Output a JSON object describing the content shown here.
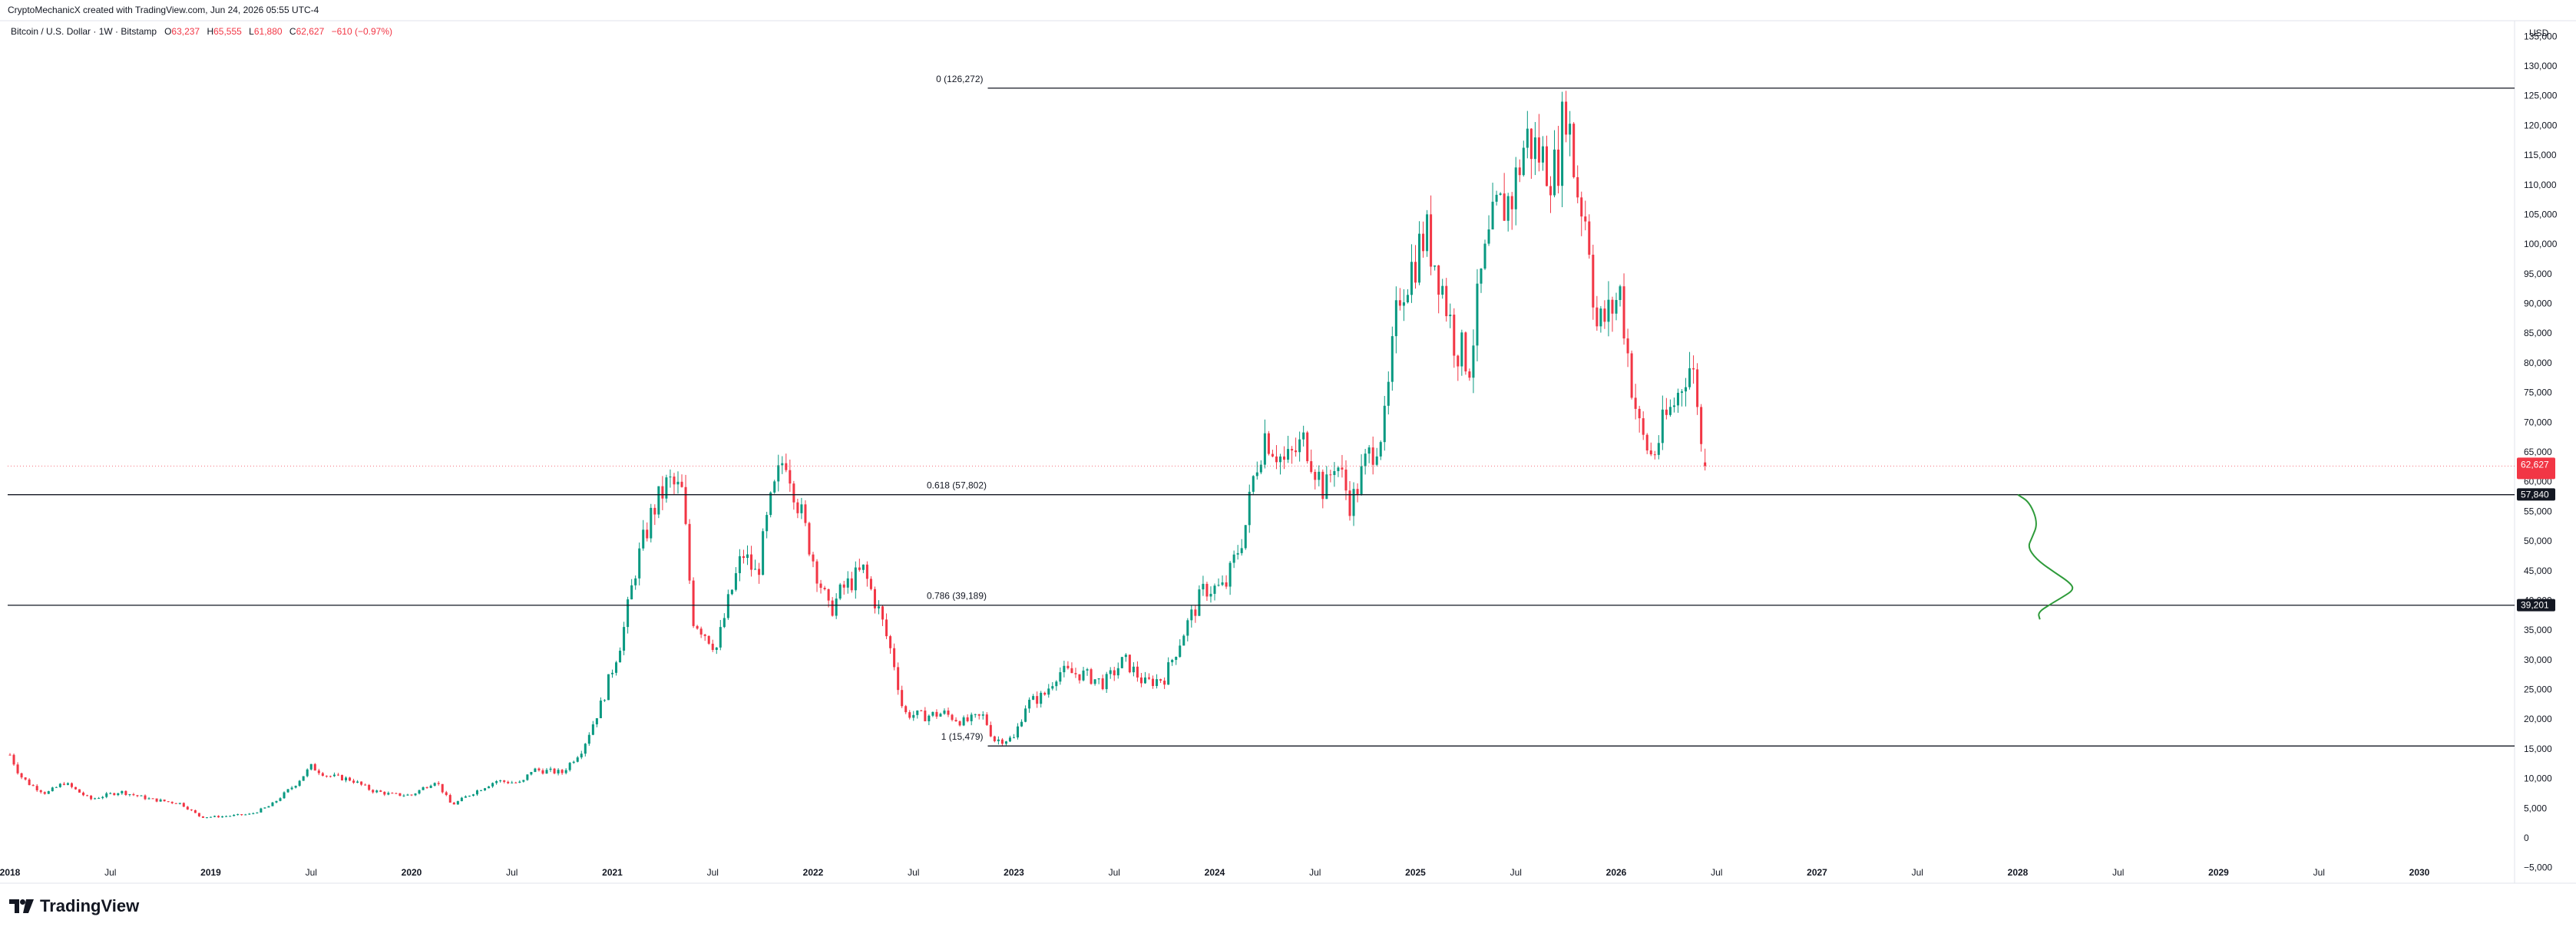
{
  "header": {
    "attribution": "CryptoMechanicX created with TradingView.com, Jun 24, 2026 05:55 UTC-4"
  },
  "legend": {
    "symbol": "Bitcoin / U.S. Dollar · 1W · Bitstamp",
    "open_key": "O",
    "open": "63,237",
    "high_key": "H",
    "high": "65,555",
    "low_key": "L",
    "low": "61,880",
    "close_key": "C",
    "close": "62,627",
    "change": "−610 (−0.97%)"
  },
  "axis": {
    "currency": "USD"
  },
  "colors": {
    "up": "#089981",
    "down": "#f23645",
    "fib_line": "#131722",
    "projection": "#2e9b3a",
    "price_tag": "#f23645",
    "level_tag": "#131722"
  },
  "chart_data": {
    "type": "candlestick",
    "symbol": "Bitcoin / U.S. Dollar",
    "interval": "1W",
    "exchange": "Bitstamp",
    "y_ticks": [
      135000,
      130000,
      125000,
      120000,
      115000,
      110000,
      105000,
      100000,
      95000,
      90000,
      85000,
      80000,
      75000,
      70000,
      65000,
      60000,
      55000,
      50000,
      45000,
      40000,
      35000,
      30000,
      25000,
      20000,
      15000,
      10000,
      5000,
      0,
      -5000
    ],
    "y_tick_labels": [
      "135,000",
      "130,000",
      "125,000",
      "120,000",
      "115,000",
      "110,000",
      "105,000",
      "100,000",
      "95,000",
      "90,000",
      "85,000",
      "80,000",
      "75,000",
      "70,000",
      "65,000",
      "60,000",
      "55,000",
      "50,000",
      "45,000",
      "40,000",
      "35,000",
      "30,000",
      "25,000",
      "20,000",
      "15,000",
      "10,000",
      "5,000",
      "0",
      "−5,000"
    ],
    "ylim": [
      -7500,
      137500
    ],
    "x_ticks": [
      {
        "label": "2018",
        "t": 2018.0,
        "bold": true
      },
      {
        "label": "Jul",
        "t": 2018.5,
        "bold": false
      },
      {
        "label": "2019",
        "t": 2019.0,
        "bold": true
      },
      {
        "label": "Jul",
        "t": 2019.5,
        "bold": false
      },
      {
        "label": "2020",
        "t": 2020.0,
        "bold": true
      },
      {
        "label": "Jul",
        "t": 2020.5,
        "bold": false
      },
      {
        "label": "2021",
        "t": 2021.0,
        "bold": true
      },
      {
        "label": "Jul",
        "t": 2021.5,
        "bold": false
      },
      {
        "label": "2022",
        "t": 2022.0,
        "bold": true
      },
      {
        "label": "Jul",
        "t": 2022.5,
        "bold": false
      },
      {
        "label": "2023",
        "t": 2023.0,
        "bold": true
      },
      {
        "label": "Jul",
        "t": 2023.5,
        "bold": false
      },
      {
        "label": "2024",
        "t": 2024.0,
        "bold": true
      },
      {
        "label": "Jul",
        "t": 2024.5,
        "bold": false
      },
      {
        "label": "2025",
        "t": 2025.0,
        "bold": true
      },
      {
        "label": "Jul",
        "t": 2025.5,
        "bold": false
      },
      {
        "label": "2026",
        "t": 2026.0,
        "bold": true
      },
      {
        "label": "Jul",
        "t": 2026.5,
        "bold": false
      },
      {
        "label": "2027",
        "t": 2027.0,
        "bold": true
      },
      {
        "label": "Jul",
        "t": 2027.5,
        "bold": false
      },
      {
        "label": "2028",
        "t": 2028.0,
        "bold": true
      },
      {
        "label": "Jul",
        "t": 2028.5,
        "bold": false
      },
      {
        "label": "2029",
        "t": 2029.0,
        "bold": true
      },
      {
        "label": "Jul",
        "t": 2029.5,
        "bold": false
      },
      {
        "label": "2030",
        "t": 2030.0,
        "bold": true
      }
    ],
    "fib_levels": [
      {
        "label": "0 (126,272)",
        "price": 126272,
        "t_start": 2022.87
      },
      {
        "label": "0.618 (57,802)",
        "price": 57802,
        "t_start": 2017.95
      },
      {
        "label": "0.786 (39,189)",
        "price": 39189,
        "t_start": 2017.95
      },
      {
        "label": "1 (15,479)",
        "price": 15479,
        "t_start": 2022.87
      }
    ],
    "price_tags": [
      {
        "label": "62,627",
        "price": 62627,
        "kind": "current"
      },
      {
        "label": "57,840",
        "price": 57840,
        "kind": "level"
      },
      {
        "label": "39,201",
        "price": 39201,
        "kind": "level"
      }
    ],
    "current_price": 62627,
    "last_candle": {
      "open": 63237,
      "high": 65555,
      "low": 61880,
      "close": 62627
    },
    "anchors": [
      [
        2018.0,
        14000
      ],
      [
        2018.05,
        10500
      ],
      [
        2018.1,
        9000
      ],
      [
        2018.18,
        7500
      ],
      [
        2018.27,
        9300
      ],
      [
        2018.4,
        6500
      ],
      [
        2018.55,
        7800
      ],
      [
        2018.7,
        6500
      ],
      [
        2018.85,
        5800
      ],
      [
        2018.95,
        3500
      ],
      [
        2019.05,
        3600
      ],
      [
        2019.2,
        4000
      ],
      [
        2019.3,
        5500
      ],
      [
        2019.42,
        9000
      ],
      [
        2019.5,
        12000
      ],
      [
        2019.58,
        10500
      ],
      [
        2019.7,
        9800
      ],
      [
        2019.8,
        8000
      ],
      [
        2019.9,
        7300
      ],
      [
        2020.0,
        7200
      ],
      [
        2020.12,
        9700
      ],
      [
        2020.2,
        5500
      ],
      [
        2020.3,
        7500
      ],
      [
        2020.42,
        9600
      ],
      [
        2020.55,
        9200
      ],
      [
        2020.6,
        11500
      ],
      [
        2020.75,
        11000
      ],
      [
        2020.85,
        15000
      ],
      [
        2020.95,
        23000
      ],
      [
        2021.05,
        34000
      ],
      [
        2021.12,
        46000
      ],
      [
        2021.2,
        55000
      ],
      [
        2021.28,
        60000
      ],
      [
        2021.35,
        58000
      ],
      [
        2021.4,
        37000
      ],
      [
        2021.45,
        35000
      ],
      [
        2021.52,
        32000
      ],
      [
        2021.58,
        40000
      ],
      [
        2021.65,
        48000
      ],
      [
        2021.72,
        44000
      ],
      [
        2021.78,
        55000
      ],
      [
        2021.86,
        65000
      ],
      [
        2021.92,
        57000
      ],
      [
        2022.0,
        47000
      ],
      [
        2022.08,
        38000
      ],
      [
        2022.15,
        42000
      ],
      [
        2022.25,
        45000
      ],
      [
        2022.33,
        38000
      ],
      [
        2022.4,
        30000
      ],
      [
        2022.45,
        21000
      ],
      [
        2022.55,
        20500
      ],
      [
        2022.65,
        21000
      ],
      [
        2022.75,
        19500
      ],
      [
        2022.85,
        20500
      ],
      [
        2022.9,
        16500
      ],
      [
        2023.0,
        16700
      ],
      [
        2023.06,
        22500
      ],
      [
        2023.15,
        24000
      ],
      [
        2023.22,
        28000
      ],
      [
        2023.35,
        27500
      ],
      [
        2023.45,
        26000
      ],
      [
        2023.55,
        30000
      ],
      [
        2023.65,
        26000
      ],
      [
        2023.75,
        27000
      ],
      [
        2023.85,
        35000
      ],
      [
        2023.95,
        42000
      ],
      [
        2024.05,
        42000
      ],
      [
        2024.15,
        52000
      ],
      [
        2024.2,
        62000
      ],
      [
        2024.25,
        68000
      ],
      [
        2024.35,
        63000
      ],
      [
        2024.45,
        67000
      ],
      [
        2024.55,
        58000
      ],
      [
        2024.6,
        64000
      ],
      [
        2024.68,
        56000
      ],
      [
        2024.75,
        63000
      ],
      [
        2024.85,
        70000
      ],
      [
        2024.88,
        80000
      ],
      [
        2024.92,
        92000
      ],
      [
        2024.98,
        96000
      ],
      [
        2025.05,
        102000
      ],
      [
        2025.12,
        95000
      ],
      [
        2025.2,
        83000
      ],
      [
        2025.27,
        80000
      ],
      [
        2025.33,
        95000
      ],
      [
        2025.4,
        105000
      ],
      [
        2025.48,
        108000
      ],
      [
        2025.55,
        118000
      ],
      [
        2025.62,
        115000
      ],
      [
        2025.7,
        112000
      ],
      [
        2025.75,
        124000
      ],
      [
        2025.8,
        110000
      ],
      [
        2025.86,
        103000
      ],
      [
        2025.9,
        86000
      ],
      [
        2025.96,
        88000
      ],
      [
        2026.02,
        92000
      ],
      [
        2026.07,
        78000
      ],
      [
        2026.12,
        68000
      ],
      [
        2026.18,
        64000
      ],
      [
        2026.24,
        70000
      ],
      [
        2026.3,
        74000
      ],
      [
        2026.36,
        80000
      ],
      [
        2026.4,
        76000
      ],
      [
        2026.42,
        66000
      ],
      [
        2026.46,
        62627
      ]
    ],
    "projection": [
      [
        2028.0,
        57800
      ],
      [
        2028.06,
        56500
      ],
      [
        2028.1,
        53000
      ],
      [
        2028.07,
        50500
      ],
      [
        2028.05,
        49000
      ],
      [
        2028.09,
        47000
      ],
      [
        2028.17,
        45000
      ],
      [
        2028.26,
        43000
      ],
      [
        2028.28,
        41800
      ],
      [
        2028.22,
        40500
      ],
      [
        2028.17,
        39500
      ],
      [
        2028.1,
        38000
      ],
      [
        2028.11,
        36800
      ]
    ]
  }
}
